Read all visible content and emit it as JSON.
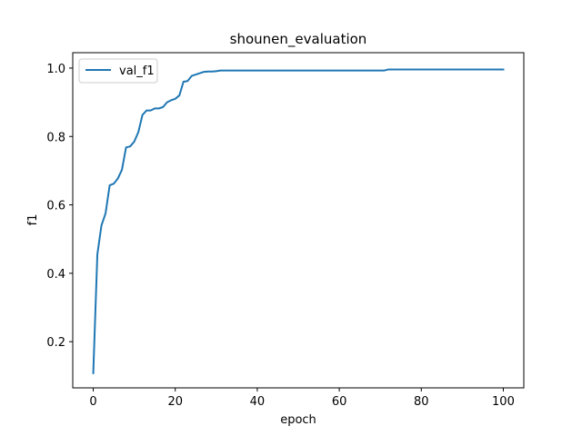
{
  "chart_data": {
    "type": "line",
    "title": "shounen_evaluation",
    "xlabel": "epoch",
    "ylabel": "f1",
    "xlim": [
      -5,
      105
    ],
    "ylim": [
      0.065,
      1.045
    ],
    "xticks": [
      0,
      20,
      40,
      60,
      80,
      100
    ],
    "yticks": [
      0.2,
      0.4,
      0.6,
      0.8,
      1.0
    ],
    "ytick_labels": [
      "0.2",
      "0.4",
      "0.6",
      "0.8",
      "1.0"
    ],
    "grid": false,
    "legend_position": "top-left",
    "series": [
      {
        "name": "val_f1",
        "color": "#1f77b4",
        "x": [
          0,
          1,
          2,
          3,
          4,
          5,
          6,
          7,
          8,
          9,
          10,
          11,
          12,
          13,
          14,
          15,
          16,
          17,
          18,
          19,
          20,
          21,
          22,
          23,
          24,
          25,
          26,
          27,
          28,
          29,
          30,
          31,
          32,
          40,
          50,
          60,
          70,
          71,
          72,
          80,
          90,
          100
        ],
        "y": [
          0.108,
          0.455,
          0.54,
          0.575,
          0.657,
          0.662,
          0.677,
          0.703,
          0.768,
          0.771,
          0.785,
          0.813,
          0.863,
          0.876,
          0.876,
          0.882,
          0.882,
          0.886,
          0.9,
          0.906,
          0.91,
          0.92,
          0.96,
          0.962,
          0.977,
          0.981,
          0.985,
          0.989,
          0.99,
          0.99,
          0.991,
          0.993,
          0.993,
          0.993,
          0.993,
          0.993,
          0.993,
          0.993,
          0.996,
          0.996,
          0.996,
          0.996
        ]
      }
    ]
  }
}
